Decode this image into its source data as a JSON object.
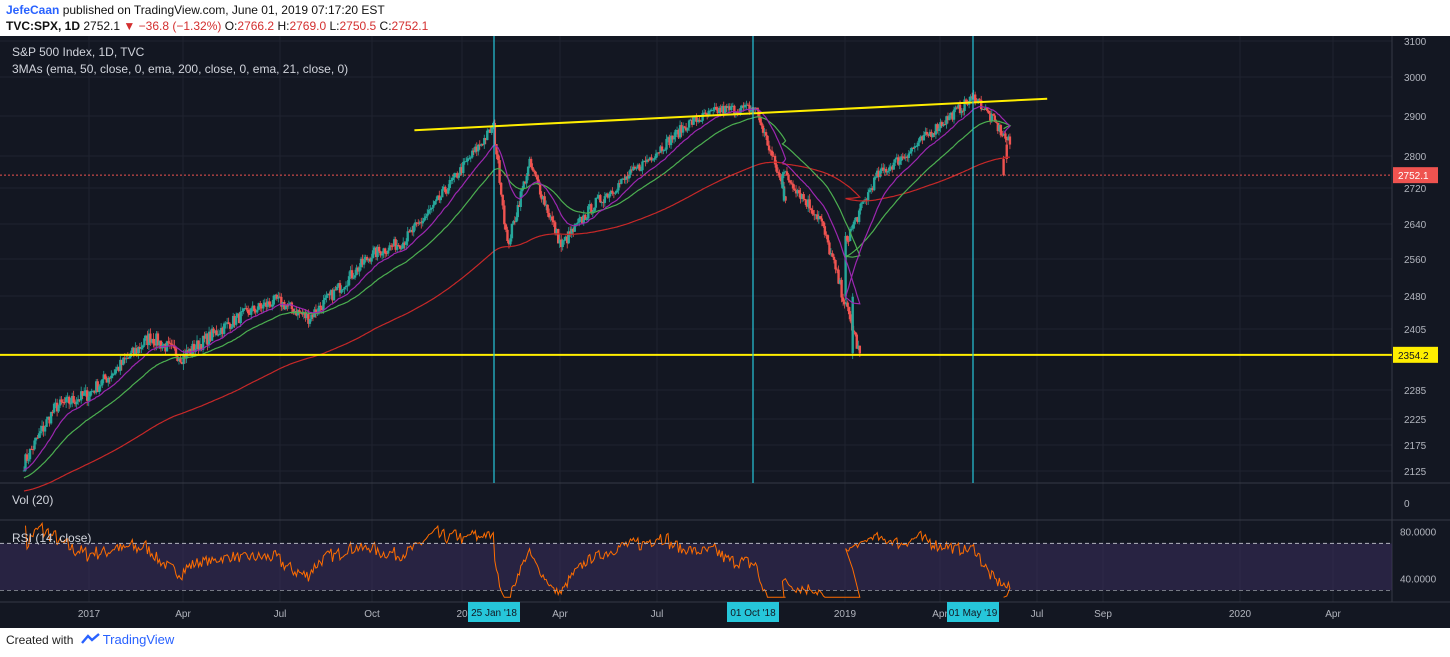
{
  "header": {
    "author": "JefeCaan",
    "published_text": " published on TradingView.com, June 01, 2019 07:17:20 EST",
    "symbol": "TVC:SPX, 1D",
    "last": "2752.1",
    "change_arrow": "▼",
    "change": "−36.8 (−1.32%)",
    "o_label": "O:",
    "o_value": "2766.2",
    "h_label": "H:",
    "h_value": "2769.0",
    "l_label": "L:",
    "l_value": "2750.5",
    "c_label": "C:",
    "c_value": "2752.1"
  },
  "legend": {
    "title": "S&P 500 Index, 1D, TVC",
    "mas": "3MAs (ema, 50, close, 0, ema, 200, close, 0, ema, 21, close, 0)",
    "vol": "Vol (20)",
    "rsi": "RSI (14, close)"
  },
  "footer": {
    "created_with": "Created with",
    "brand": "TradingView"
  },
  "colors": {
    "background": "#131722",
    "up": "#26a69a",
    "down": "#ef5350",
    "ema21": "#9c27b0",
    "ema50": "#4caf50",
    "ema200": "#c62828",
    "trendline": "#ffee00",
    "marker": "#26c6da",
    "rsi": "#ff6d00",
    "rsi_band": "#3a2d5c"
  },
  "chart_data": {
    "type": "candlestick",
    "title": "S&P 500 Index, 1D, TVC",
    "price_axis_ticks": [
      3100,
      3000,
      2900,
      2800,
      2720,
      2640,
      2560,
      2480,
      2405,
      2285,
      2225,
      2175,
      2125
    ],
    "price_last_label": "2752.1",
    "support_label": "2354.2",
    "volume_axis_ticks": [
      0
    ],
    "rsi_axis_ticks": [
      "80.0000",
      "40.0000"
    ],
    "rsi_band": [
      30,
      70
    ],
    "time_axis_labels": [
      "2017",
      "Apr",
      "Jul",
      "Oct",
      "20",
      "Apr",
      "Jul",
      "2019",
      "Apr",
      "Jul",
      "Sep",
      "2020",
      "Apr"
    ],
    "markers": [
      "25 Jan '18",
      "01 Oct '18",
      "01 May '19"
    ],
    "lines": {
      "resistance": {
        "from": [
          "Jan 2018",
          2872
        ],
        "to": [
          "Jul 2019",
          2975
        ]
      },
      "support": 2354.2,
      "last_price": 2752.1
    },
    "price_anchors": [
      [
        "Nov 2016",
        2140
      ],
      [
        "Dec 2016",
        2250
      ],
      [
        "Jan 2017",
        2275
      ],
      [
        "Feb 2017",
        2330
      ],
      [
        "Mar 2017",
        2390
      ],
      [
        "Apr 2017",
        2350
      ],
      [
        "May 2017",
        2395
      ],
      [
        "Jun 2017",
        2440
      ],
      [
        "Jul 2017",
        2470
      ],
      [
        "Aug 2017",
        2430
      ],
      [
        "Sep 2017",
        2500
      ],
      [
        "Oct 2017",
        2570
      ],
      [
        "Nov 2017",
        2600
      ],
      [
        "Dec 2017",
        2680
      ],
      [
        "Jan 2018",
        2872
      ],
      [
        "Feb 2018",
        2590
      ],
      [
        "Mar 2018",
        2780
      ],
      [
        "Apr 2018",
        2590
      ],
      [
        "May 2018",
        2680
      ],
      [
        "Jun 2018",
        2740
      ],
      [
        "Jul 2018",
        2810
      ],
      [
        "Aug 2018",
        2880
      ],
      [
        "Sep 2018",
        2915
      ],
      [
        "Oct 2018",
        2920
      ],
      [
        "Oct 2018",
        2700
      ],
      [
        "Nov 2018",
        2760
      ],
      [
        "Dec 2018",
        2650
      ],
      [
        "Dec 2018",
        2352
      ],
      [
        "Jan 2019",
        2600
      ],
      [
        "Feb 2019",
        2750
      ],
      [
        "Mar 2019",
        2810
      ],
      [
        "Apr 2019",
        2880
      ],
      [
        "May 2019",
        2950
      ],
      [
        "May 2019",
        2830
      ],
      [
        "Jun 2019",
        2752
      ]
    ]
  }
}
